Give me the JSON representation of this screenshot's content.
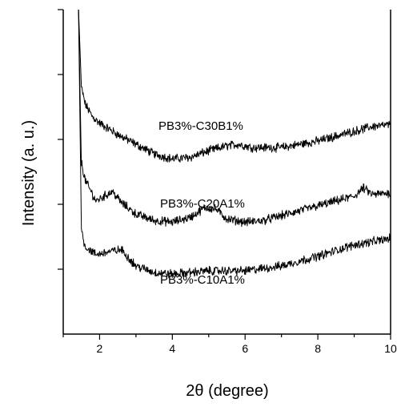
{
  "chart_data": {
    "type": "line",
    "title": "",
    "xlabel": "2θ (degree)",
    "ylabel": "Intensity (a. u.)",
    "xlim": [
      1,
      10
    ],
    "x_ticks": [
      2,
      4,
      6,
      8,
      10
    ],
    "x_tick_labels": [
      "2",
      "4",
      "6",
      "8",
      "10"
    ],
    "y_tick_labels_shown": false,
    "grid": false,
    "legend": "inline labels next to curves",
    "series": [
      {
        "name": "PB3%-C30B1%",
        "x": [
          1.42,
          1.5,
          1.6,
          1.8,
          2.0,
          2.5,
          3.0,
          3.5,
          4.0,
          4.5,
          5.0,
          5.5,
          5.8,
          6.2,
          7.0,
          8.0,
          9.0,
          9.5,
          10.0
        ],
        "y": [
          10.0,
          7.6,
          7.1,
          6.7,
          6.5,
          6.15,
          5.85,
          5.55,
          5.4,
          5.45,
          5.65,
          5.8,
          5.85,
          5.75,
          5.75,
          5.95,
          6.25,
          6.4,
          6.45
        ]
      },
      {
        "name": "PB3%-C20A1%",
        "x": [
          1.42,
          1.5,
          1.6,
          1.9,
          2.2,
          2.35,
          2.6,
          3.0,
          3.5,
          4.0,
          4.5,
          4.9,
          5.2,
          5.5,
          6.0,
          6.5,
          7.0,
          8.0,
          9.0,
          9.25,
          9.5,
          10.0
        ],
        "y": [
          10.0,
          5.3,
          4.75,
          4.1,
          4.3,
          4.4,
          4.05,
          3.7,
          3.5,
          3.45,
          3.6,
          3.9,
          3.85,
          3.55,
          3.45,
          3.5,
          3.65,
          3.95,
          4.25,
          4.5,
          4.3,
          4.35
        ]
      },
      {
        "name": "PB3%-C10A1%",
        "x": [
          1.42,
          1.5,
          1.6,
          1.9,
          2.3,
          2.6,
          3.0,
          3.5,
          4.0,
          5.0,
          6.0,
          7.0,
          8.0,
          9.0,
          10.0
        ],
        "y": [
          10.0,
          3.2,
          2.7,
          2.45,
          2.55,
          2.6,
          2.1,
          1.9,
          1.85,
          1.95,
          1.95,
          2.1,
          2.4,
          2.75,
          2.95
        ]
      }
    ],
    "annotations": [
      "PB3%-C30B1%",
      "PB3%-C20A1%",
      "PB3%-C10A1%"
    ]
  }
}
